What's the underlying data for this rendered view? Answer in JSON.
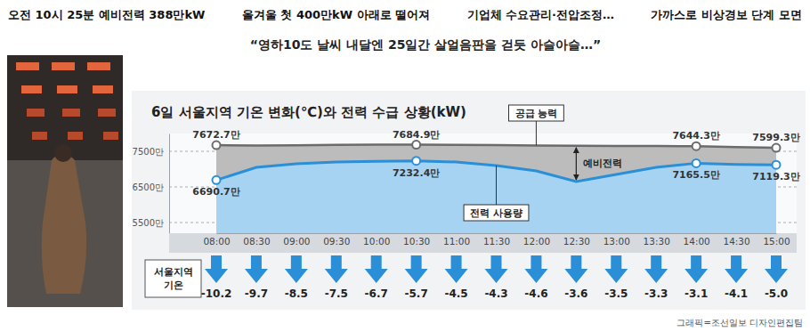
{
  "headline": [
    "오전 10시 25분 예비전력 388만kW",
    "올겨울 첫 400만kW 아래로 떨어져",
    "기업체 수요관리·전압조정…",
    "가까스로 비상경보 단계 모면"
  ],
  "subheadline": "“영하10도 날씨 내달엔 25일간  살얼음판을 걷듯 아슬아슬…”",
  "credit": "그래픽=조선일보 디자인편집팀",
  "chart_data": [
    {
      "type": "line",
      "title": "6일 서울지역 기온 변화(℃)와 전력 수급 상황(kW)",
      "categories": [
        "08:00",
        "08:30",
        "09:00",
        "09:30",
        "10:00",
        "10:30",
        "11:00",
        "11:30",
        "12:00",
        "12:30",
        "13:00",
        "13:30",
        "14:00",
        "14:30",
        "15:00"
      ],
      "series": [
        {
          "name": "공급 능력",
          "color": "#6b6b6b",
          "marker": "circle",
          "values": [
            7672.7,
            7660,
            7670,
            7680,
            7685,
            7684.9,
            7680,
            7675,
            7665,
            7655,
            7650,
            7648,
            7644.3,
            7620,
            7599.3
          ],
          "value_labels": [
            "7672.7만",
            null,
            null,
            null,
            null,
            "7684.9만",
            null,
            null,
            null,
            null,
            null,
            null,
            "7644.3만",
            null,
            "7599.3만"
          ]
        },
        {
          "name": "전력 사용량",
          "color": "#2b8fd8",
          "marker": "circle",
          "values": [
            6690.7,
            7050,
            7150,
            7200,
            7220,
            7232.4,
            7200,
            7100,
            6950,
            6650,
            6850,
            7050,
            7165.5,
            7130,
            7119.3
          ],
          "value_labels": [
            "6690.7만",
            null,
            null,
            null,
            null,
            "7232.4만",
            null,
            null,
            null,
            null,
            null,
            null,
            "7165.5만",
            null,
            "7119.3만"
          ]
        }
      ],
      "annotations": [
        "예비전력"
      ],
      "ylim": [
        5200,
        8000
      ],
      "yticks": [
        {
          "value": 5500,
          "label": "5500만"
        },
        {
          "value": 6500,
          "label": "6500만"
        },
        {
          "value": 7500,
          "label": "7500만"
        }
      ],
      "grid": true,
      "data_labels": true
    },
    {
      "type": "arrow",
      "title": "서울지역 기온",
      "values": [
        -10.2,
        -9.7,
        -8.5,
        -7.5,
        -6.7,
        -5.7,
        -4.5,
        -4.3,
        -4.6,
        -3.6,
        -3.5,
        -3.3,
        -3.1,
        -4.1,
        -5.0
      ],
      "value_labels": [
        "-10.2",
        "-9.7",
        "-8.5",
        "-7.5",
        "-6.7",
        "-5.7",
        "-4.5",
        "-4.3",
        "-4.6",
        "-3.6",
        "-3.5",
        "-3.3",
        "-3.1",
        "-4.1",
        "-5.0"
      ],
      "color": "#2b8fd8",
      "data_labels": true
    }
  ]
}
